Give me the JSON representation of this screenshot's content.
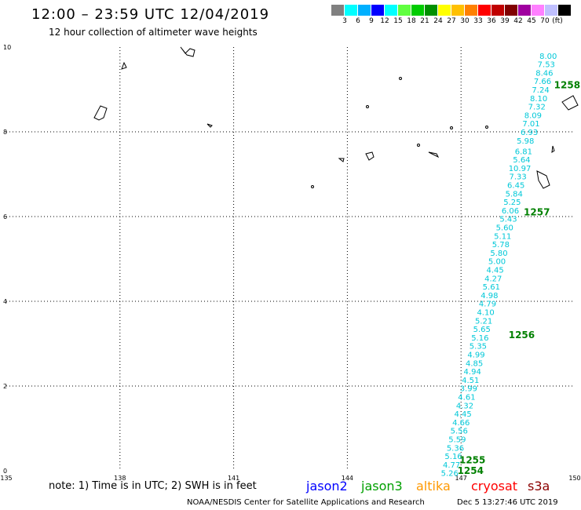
{
  "header": {
    "title": "12:00 – 23:59 UTC 12/04/2019",
    "subtitle": "12 hour collection of altimeter wave heights"
  },
  "legend": {
    "unit": "(ft)",
    "colors": [
      "#808080",
      "#00ffff",
      "#00b0ff",
      "#0000ff",
      "#00ffff",
      "#60ff40",
      "#00cc00",
      "#009000",
      "#ffff00",
      "#ffc000",
      "#ff8000",
      "#ff0000",
      "#c00000",
      "#800000",
      "#a000a0",
      "#ff80ff",
      "#c0c0ff",
      "#000000"
    ],
    "labels": [
      "3",
      "6",
      "9",
      "12",
      "15",
      "18",
      "21",
      "24",
      "27",
      "30",
      "33",
      "36",
      "39",
      "42",
      "45",
      "70"
    ]
  },
  "axes": {
    "x_ticks": [
      "135",
      "138",
      "141",
      "144",
      "147",
      "150"
    ],
    "y_ticks": [
      "0",
      "2",
      "4",
      "6",
      "8",
      "10"
    ]
  },
  "chart_data": {
    "type": "scatter",
    "x_range": [
      135,
      150
    ],
    "y_range": [
      0,
      10
    ],
    "grid": true,
    "wave_heights": [
      {
        "x": 149.3,
        "y": 9.8,
        "v": "8.00"
      },
      {
        "x": 149.25,
        "y": 9.6,
        "v": "7.53"
      },
      {
        "x": 149.2,
        "y": 9.4,
        "v": "8.46"
      },
      {
        "x": 149.15,
        "y": 9.2,
        "v": "7.66"
      },
      {
        "x": 149.1,
        "y": 9.0,
        "v": "7.24"
      },
      {
        "x": 149.05,
        "y": 8.8,
        "v": "8.10"
      },
      {
        "x": 149.0,
        "y": 8.6,
        "v": "7.32"
      },
      {
        "x": 148.9,
        "y": 8.4,
        "v": "8.09"
      },
      {
        "x": 148.85,
        "y": 8.2,
        "v": "7.01"
      },
      {
        "x": 148.8,
        "y": 8.0,
        "v": "6.93"
      },
      {
        "x": 148.7,
        "y": 7.8,
        "v": "5.98"
      },
      {
        "x": 148.65,
        "y": 7.55,
        "v": "6.81"
      },
      {
        "x": 148.6,
        "y": 7.35,
        "v": "5.64"
      },
      {
        "x": 148.55,
        "y": 7.15,
        "v": "10.97",
        "color": "#0000cc"
      },
      {
        "x": 148.5,
        "y": 6.95,
        "v": "7.33"
      },
      {
        "x": 148.45,
        "y": 6.75,
        "v": "6.45"
      },
      {
        "x": 148.4,
        "y": 6.55,
        "v": "5.84"
      },
      {
        "x": 148.35,
        "y": 6.35,
        "v": "5.25"
      },
      {
        "x": 148.3,
        "y": 6.15,
        "v": "6.06",
        "color": "#00a0a0"
      },
      {
        "x": 148.25,
        "y": 5.95,
        "v": "5.43"
      },
      {
        "x": 148.15,
        "y": 5.75,
        "v": "5.60"
      },
      {
        "x": 148.1,
        "y": 5.55,
        "v": "5.11"
      },
      {
        "x": 148.05,
        "y": 5.35,
        "v": "5.78"
      },
      {
        "x": 148.0,
        "y": 5.15,
        "v": "5.80"
      },
      {
        "x": 147.95,
        "y": 4.95,
        "v": "5.00"
      },
      {
        "x": 147.9,
        "y": 4.75,
        "v": "4.45"
      },
      {
        "x": 147.85,
        "y": 4.55,
        "v": "4.27"
      },
      {
        "x": 147.8,
        "y": 4.35,
        "v": "5.61"
      },
      {
        "x": 147.75,
        "y": 4.15,
        "v": "4.98"
      },
      {
        "x": 147.7,
        "y": 3.95,
        "v": "4.79"
      },
      {
        "x": 147.65,
        "y": 3.75,
        "v": "4.10"
      },
      {
        "x": 147.6,
        "y": 3.55,
        "v": "5.21"
      },
      {
        "x": 147.55,
        "y": 3.35,
        "v": "5.65"
      },
      {
        "x": 147.5,
        "y": 3.15,
        "v": "5.16"
      },
      {
        "x": 147.45,
        "y": 2.95,
        "v": "5.35"
      },
      {
        "x": 147.4,
        "y": 2.75,
        "v": "4.99"
      },
      {
        "x": 147.35,
        "y": 2.55,
        "v": "4.85"
      },
      {
        "x": 147.3,
        "y": 2.35,
        "v": "4.94"
      },
      {
        "x": 147.25,
        "y": 2.15,
        "v": "4.51"
      },
      {
        "x": 147.2,
        "y": 1.95,
        "v": "3.99"
      },
      {
        "x": 147.15,
        "y": 1.75,
        "v": "4.61"
      },
      {
        "x": 147.1,
        "y": 1.55,
        "v": "4.32"
      },
      {
        "x": 147.05,
        "y": 1.35,
        "v": "4.45"
      },
      {
        "x": 147.0,
        "y": 1.15,
        "v": "4.66"
      },
      {
        "x": 146.95,
        "y": 0.95,
        "v": "5.56"
      },
      {
        "x": 146.9,
        "y": 0.75,
        "v": "5.59"
      },
      {
        "x": 146.85,
        "y": 0.55,
        "v": "5.36"
      },
      {
        "x": 146.8,
        "y": 0.35,
        "v": "5.16"
      },
      {
        "x": 146.75,
        "y": 0.15,
        "v": "4.77"
      },
      {
        "x": 146.7,
        "y": -0.05,
        "v": "5.26"
      }
    ],
    "pass_times": [
      {
        "x": 149.8,
        "y": 9.1,
        "v": "1258"
      },
      {
        "x": 149.0,
        "y": 6.1,
        "v": "1257"
      },
      {
        "x": 148.6,
        "y": 3.2,
        "v": "1256"
      },
      {
        "x": 147.3,
        "y": 0.25,
        "v": "1255"
      },
      {
        "x": 147.25,
        "y": 0.0,
        "v": "1254"
      }
    ]
  },
  "footer": {
    "note": "note: 1) Time is in UTC; 2) SWH is in feet",
    "satellites": [
      {
        "name": "jason2",
        "color": "#0000ff"
      },
      {
        "name": "jason3",
        "color": "#00a000"
      },
      {
        "name": "altika",
        "color": "#ff9900"
      },
      {
        "name": "cryosat",
        "color": "#ff0000"
      },
      {
        "name": "s3a",
        "color": "#8b0000"
      }
    ],
    "credit": "NOAA/NESDIS Center for Satellite Applications and Research",
    "timestamp": "Dec  5 13:27:46 UTC 2019"
  }
}
